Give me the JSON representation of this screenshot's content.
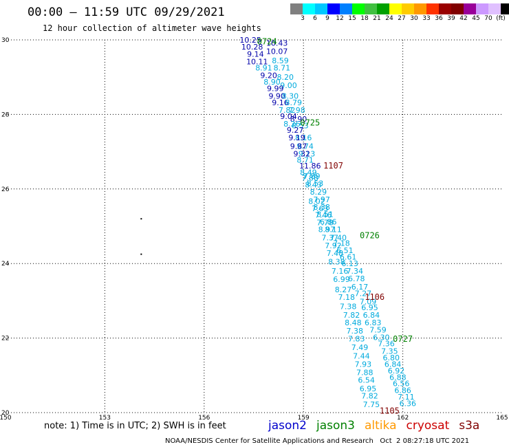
{
  "header": {
    "title": "00:00 – 11:59 UTC 09/29/2021",
    "subtitle": "12 hour collection of altimeter wave heights"
  },
  "scale": {
    "colors": [
      "#808080",
      "#00ffff",
      "#00c8ff",
      "#0000ff",
      "#0080ff",
      "#00ff00",
      "#40c040",
      "#00a000",
      "#ffff00",
      "#ffcc00",
      "#ff9900",
      "#ff3300",
      "#990000",
      "#800000",
      "#990099",
      "#cc99ff",
      "#e0c0ff",
      "#000000"
    ],
    "labels": [
      "3",
      "6",
      "9",
      "12",
      "15",
      "18",
      "21",
      "24",
      "27",
      "30",
      "33",
      "36",
      "39",
      "42",
      "45",
      "70",
      "(ft)"
    ]
  },
  "map": {
    "lon_ticks": [
      "150",
      "153",
      "156",
      "159",
      "162",
      "165"
    ],
    "lat_ticks": [
      "30",
      "28",
      "26",
      "24",
      "22",
      "20"
    ],
    "dots": [
      {
        "lon": 154.1,
        "lat": 25.2
      },
      {
        "lon": 154.1,
        "lat": 24.25
      }
    ],
    "times": [
      {
        "text": "0724",
        "lon": 157.9,
        "lat": 29.95,
        "color": "#008000"
      },
      {
        "text": "0725",
        "lon": 159.2,
        "lat": 27.78,
        "color": "#008000"
      },
      {
        "text": "1107",
        "lon": 159.9,
        "lat": 26.62,
        "color": "#800000"
      },
      {
        "text": "0726",
        "lon": 161.0,
        "lat": 24.75,
        "color": "#008000"
      },
      {
        "text": "1106",
        "lon": 161.15,
        "lat": 23.1,
        "color": "#800000"
      },
      {
        "text": "0727",
        "lon": 162.0,
        "lat": 21.97,
        "color": "#008000"
      },
      {
        "text": "1105",
        "lon": 161.6,
        "lat": 20.05,
        "color": "#800000"
      }
    ],
    "labels": [
      {
        "t": "10.25",
        "lon": 157.4,
        "lat": 30.0,
        "c": "#0000aa"
      },
      {
        "t": "10.43",
        "lon": 158.2,
        "lat": 29.92,
        "c": "#0000aa"
      },
      {
        "t": "10.28",
        "lon": 157.45,
        "lat": 29.82,
        "c": "#0000aa"
      },
      {
        "t": "10.07",
        "lon": 158.2,
        "lat": 29.7,
        "c": "#0000aa"
      },
      {
        "t": "9.14",
        "lon": 157.55,
        "lat": 29.62,
        "c": "#0000aa"
      },
      {
        "t": "8.59",
        "lon": 158.3,
        "lat": 29.45,
        "c": "#00aadd"
      },
      {
        "t": "10.11",
        "lon": 157.6,
        "lat": 29.42,
        "c": "#0000aa"
      },
      {
        "t": "8.91",
        "lon": 157.8,
        "lat": 29.25,
        "c": "#00aadd"
      },
      {
        "t": "8.71",
        "lon": 158.35,
        "lat": 29.25,
        "c": "#00aadd"
      },
      {
        "t": "9.20",
        "lon": 157.95,
        "lat": 29.05,
        "c": "#0000aa"
      },
      {
        "t": "8.20",
        "lon": 158.45,
        "lat": 29.0,
        "c": "#00aadd"
      },
      {
        "t": "8.90",
        "lon": 158.05,
        "lat": 28.87,
        "c": "#00aadd"
      },
      {
        "t": "9.00",
        "lon": 158.55,
        "lat": 28.78,
        "c": "#00aadd"
      },
      {
        "t": "9.99",
        "lon": 158.15,
        "lat": 28.7,
        "c": "#0000aa"
      },
      {
        "t": "9.90",
        "lon": 158.2,
        "lat": 28.5,
        "c": "#0000aa"
      },
      {
        "t": "8.30",
        "lon": 158.6,
        "lat": 28.5,
        "c": "#00aadd"
      },
      {
        "t": "9.16",
        "lon": 158.3,
        "lat": 28.32,
        "c": "#0000aa"
      },
      {
        "t": "8.79",
        "lon": 158.7,
        "lat": 28.32,
        "c": "#00aadd"
      },
      {
        "t": "7.82",
        "lon": 158.5,
        "lat": 28.12,
        "c": "#00aadd"
      },
      {
        "t": "7.98",
        "lon": 158.8,
        "lat": 28.12,
        "c": "#00aadd"
      },
      {
        "t": "9.04",
        "lon": 158.55,
        "lat": 27.95,
        "c": "#0000aa"
      },
      {
        "t": "8.90",
        "lon": 158.85,
        "lat": 27.88,
        "c": "#0000aa"
      },
      {
        "t": "8.26",
        "lon": 158.65,
        "lat": 27.75,
        "c": "#00aadd"
      },
      {
        "t": "8.53",
        "lon": 158.9,
        "lat": 27.7,
        "c": "#00aadd"
      },
      {
        "t": "9.27",
        "lon": 158.75,
        "lat": 27.58,
        "c": "#0000aa"
      },
      {
        "t": "8.16",
        "lon": 159.0,
        "lat": 27.38,
        "c": "#00aadd"
      },
      {
        "t": "9.19",
        "lon": 158.8,
        "lat": 27.38,
        "c": "#0000aa"
      },
      {
        "t": "9.74",
        "lon": 159.05,
        "lat": 27.15,
        "c": "#00aadd"
      },
      {
        "t": "9.87",
        "lon": 158.85,
        "lat": 27.15,
        "c": "#0000aa"
      },
      {
        "t": "9.13",
        "lon": 159.1,
        "lat": 26.95,
        "c": "#00aadd"
      },
      {
        "t": "9.32",
        "lon": 158.95,
        "lat": 26.95,
        "c": "#0000aa"
      },
      {
        "t": "8.71",
        "lon": 159.05,
        "lat": 26.78,
        "c": "#00aadd"
      },
      {
        "t": "11.86",
        "lon": 159.2,
        "lat": 26.62,
        "c": "#0000aa"
      },
      {
        "t": "8.49",
        "lon": 159.15,
        "lat": 26.45,
        "c": "#00aadd"
      },
      {
        "t": "7.89",
        "lon": 159.25,
        "lat": 26.35,
        "c": "#00aadd"
      },
      {
        "t": "7.88",
        "lon": 159.2,
        "lat": 26.3,
        "c": "#00aadd"
      },
      {
        "t": "8.53",
        "lon": 159.35,
        "lat": 26.15,
        "c": "#00aadd"
      },
      {
        "t": "8.43",
        "lon": 159.3,
        "lat": 26.12,
        "c": "#00aadd"
      },
      {
        "t": "8.29",
        "lon": 159.45,
        "lat": 25.92,
        "c": "#00aadd"
      },
      {
        "t": "7.97",
        "lon": 159.55,
        "lat": 25.72,
        "c": "#00aadd"
      },
      {
        "t": "8.02",
        "lon": 159.4,
        "lat": 25.67,
        "c": "#00aadd"
      },
      {
        "t": "8.38",
        "lon": 159.55,
        "lat": 25.52,
        "c": "#00aadd"
      },
      {
        "t": "7.63",
        "lon": 159.5,
        "lat": 25.48,
        "c": "#00aadd"
      },
      {
        "t": "8.51",
        "lon": 159.65,
        "lat": 25.32,
        "c": "#00aadd"
      },
      {
        "t": "7.46",
        "lon": 159.6,
        "lat": 25.3,
        "c": "#00aadd"
      },
      {
        "t": "6.86",
        "lon": 159.75,
        "lat": 25.12,
        "c": "#00aadd"
      },
      {
        "t": "7.78",
        "lon": 159.65,
        "lat": 25.1,
        "c": "#00aadd"
      },
      {
        "t": "8.97",
        "lon": 159.7,
        "lat": 24.92,
        "c": "#00aadd"
      },
      {
        "t": "8.11",
        "lon": 159.9,
        "lat": 24.92,
        "c": "#00aadd"
      },
      {
        "t": "7.37",
        "lon": 159.8,
        "lat": 24.7,
        "c": "#00aadd"
      },
      {
        "t": "7.40",
        "lon": 160.05,
        "lat": 24.7,
        "c": "#00aadd"
      },
      {
        "t": "7.92",
        "lon": 159.9,
        "lat": 24.48,
        "c": "#00aadd"
      },
      {
        "t": "7.18",
        "lon": 160.15,
        "lat": 24.55,
        "c": "#00aadd"
      },
      {
        "t": "7.48",
        "lon": 159.95,
        "lat": 24.28,
        "c": "#00aadd"
      },
      {
        "t": "6.51",
        "lon": 160.25,
        "lat": 24.35,
        "c": "#00aadd"
      },
      {
        "t": "6.61",
        "lon": 160.35,
        "lat": 24.18,
        "c": "#00aadd"
      },
      {
        "t": "8.38",
        "lon": 160.0,
        "lat": 24.05,
        "c": "#00aadd"
      },
      {
        "t": "6.13",
        "lon": 160.4,
        "lat": 24.0,
        "c": "#00aadd"
      },
      {
        "t": "7.16",
        "lon": 160.1,
        "lat": 23.8,
        "c": "#00aadd"
      },
      {
        "t": "7.34",
        "lon": 160.55,
        "lat": 23.8,
        "c": "#00aadd"
      },
      {
        "t": "6.99",
        "lon": 160.15,
        "lat": 23.58,
        "c": "#00aadd"
      },
      {
        "t": "6.78",
        "lon": 160.6,
        "lat": 23.6,
        "c": "#00aadd"
      },
      {
        "t": "8.27",
        "lon": 160.2,
        "lat": 23.3,
        "c": "#00aadd"
      },
      {
        "t": "6.17",
        "lon": 160.7,
        "lat": 23.38,
        "c": "#00aadd"
      },
      {
        "t": "7.27",
        "lon": 160.8,
        "lat": 23.2,
        "c": "#00aadd"
      },
      {
        "t": "7.18",
        "lon": 160.3,
        "lat": 23.1,
        "c": "#00aadd"
      },
      {
        "t": "7.09",
        "lon": 160.95,
        "lat": 22.98,
        "c": "#00aadd"
      },
      {
        "t": "7.38",
        "lon": 160.35,
        "lat": 22.85,
        "c": "#00aadd"
      },
      {
        "t": "6.95",
        "lon": 161.0,
        "lat": 22.82,
        "c": "#00aadd"
      },
      {
        "t": "6.84",
        "lon": 161.05,
        "lat": 22.62,
        "c": "#00aadd"
      },
      {
        "t": "7.82",
        "lon": 160.45,
        "lat": 22.62,
        "c": "#00aadd"
      },
      {
        "t": "6.83",
        "lon": 161.1,
        "lat": 22.42,
        "c": "#00aadd"
      },
      {
        "t": "8.48",
        "lon": 160.5,
        "lat": 22.42,
        "c": "#00aadd"
      },
      {
        "t": "7.59",
        "lon": 161.25,
        "lat": 22.22,
        "c": "#00aadd"
      },
      {
        "t": "7.38",
        "lon": 160.55,
        "lat": 22.2,
        "c": "#00aadd"
      },
      {
        "t": "6.30",
        "lon": 161.35,
        "lat": 22.02,
        "c": "#00aadd"
      },
      {
        "t": "7.83",
        "lon": 160.6,
        "lat": 21.98,
        "c": "#00aadd"
      },
      {
        "t": "7.36",
        "lon": 161.5,
        "lat": 21.85,
        "c": "#00aadd"
      },
      {
        "t": "7.49",
        "lon": 160.7,
        "lat": 21.75,
        "c": "#00aadd"
      },
      {
        "t": "7.35",
        "lon": 161.6,
        "lat": 21.65,
        "c": "#00aadd"
      },
      {
        "t": "7.44",
        "lon": 160.75,
        "lat": 21.52,
        "c": "#00aadd"
      },
      {
        "t": "6.80",
        "lon": 161.65,
        "lat": 21.48,
        "c": "#00aadd"
      },
      {
        "t": "7.93",
        "lon": 160.8,
        "lat": 21.3,
        "c": "#00aadd"
      },
      {
        "t": "6.84",
        "lon": 161.7,
        "lat": 21.3,
        "c": "#00aadd"
      },
      {
        "t": "6.92",
        "lon": 161.8,
        "lat": 21.13,
        "c": "#00aadd"
      },
      {
        "t": "7.88",
        "lon": 160.85,
        "lat": 21.08,
        "c": "#00aadd"
      },
      {
        "t": "6.88",
        "lon": 161.85,
        "lat": 20.95,
        "c": "#00aadd"
      },
      {
        "t": "6.54",
        "lon": 160.9,
        "lat": 20.88,
        "c": "#00aadd"
      },
      {
        "t": "6.56",
        "lon": 161.95,
        "lat": 20.78,
        "c": "#00aadd"
      },
      {
        "t": "6.95",
        "lon": 160.95,
        "lat": 20.65,
        "c": "#00aadd"
      },
      {
        "t": "6.86",
        "lon": 162.0,
        "lat": 20.6,
        "c": "#00aadd"
      },
      {
        "t": "7.82",
        "lon": 161.0,
        "lat": 20.45,
        "c": "#00aadd"
      },
      {
        "t": "7.11",
        "lon": 162.1,
        "lat": 20.42,
        "c": "#00aadd"
      },
      {
        "t": "7.75",
        "lon": 161.05,
        "lat": 20.22,
        "c": "#00aadd"
      },
      {
        "t": "6.36",
        "lon": 162.15,
        "lat": 20.25,
        "c": "#00aadd"
      }
    ]
  },
  "note": "note: 1) Time is in UTC; 2) SWH is in feet",
  "satellites": [
    {
      "name": "jason2",
      "color": "#0000cc"
    },
    {
      "name": "jason3",
      "color": "#008000"
    },
    {
      "name": "altika",
      "color": "#ff9900"
    },
    {
      "name": "cryosat",
      "color": "#cc0000"
    },
    {
      "name": "s3a",
      "color": "#800000"
    }
  ],
  "footer": "NOAA/NESDIS Center for Satellite Applications and Research   Oct  2 08:27:18 UTC 2021"
}
